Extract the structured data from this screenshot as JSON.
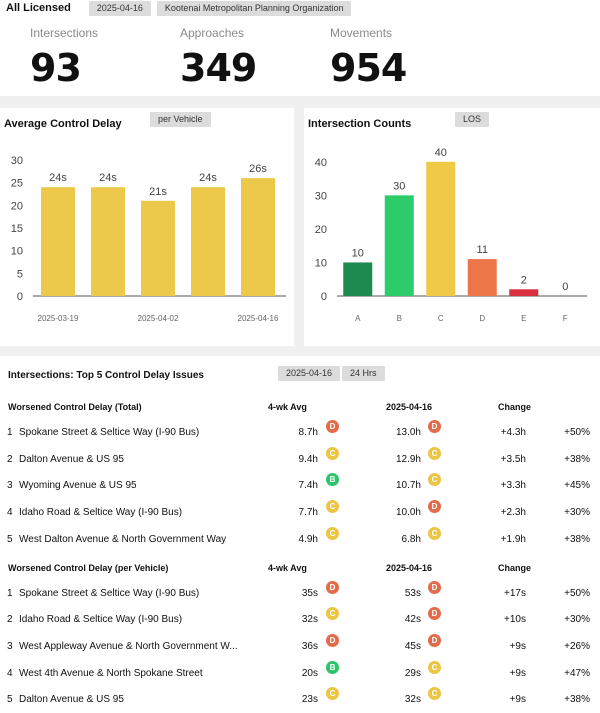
{
  "header": {
    "title": "All Licensed",
    "date_chip": "2025-04-16",
    "org_chip": "Kootenai Metropolitan Planning Organization"
  },
  "stats": [
    {
      "label": "Intersections",
      "value": "93"
    },
    {
      "label": "Approaches",
      "value": "349"
    },
    {
      "label": "Movements",
      "value": "954"
    }
  ],
  "delay_panel": {
    "title": "Average Control Delay",
    "chip": "per Vehicle"
  },
  "counts_panel": {
    "title": "Intersection Counts",
    "chip": "LOS"
  },
  "chart_data": [
    {
      "type": "bar",
      "title": "Average Control Delay",
      "categories": [
        "2025-03-19",
        "",
        "2025-04-02",
        "",
        "2025-04-16"
      ],
      "values": [
        24,
        24,
        21,
        24,
        26
      ],
      "data_labels": [
        "24s",
        "24s",
        "21s",
        "24s",
        "26s"
      ],
      "y_ticks": [
        0,
        5,
        10,
        15,
        20,
        25,
        30
      ],
      "ylim": [
        0,
        30
      ],
      "colors": [
        "#ecc94b"
      ],
      "grid": false
    },
    {
      "type": "bar",
      "title": "Intersection Counts",
      "categories": [
        "A",
        "B",
        "C",
        "D",
        "E",
        "F"
      ],
      "values": [
        10,
        30,
        40,
        11,
        2,
        0
      ],
      "data_labels": [
        "10",
        "30",
        "40",
        "11",
        "2",
        "0"
      ],
      "y_ticks": [
        0,
        10,
        20,
        30,
        40
      ],
      "ylim": [
        0,
        45
      ],
      "colors": [
        "#1e8a4f",
        "#2ccc6a",
        "#f0c946",
        "#ec7549",
        "#d9313f",
        "#c0392b"
      ],
      "grid": false
    }
  ],
  "table": {
    "title": "Intersections: Top 5 Control Delay Issues",
    "chips": [
      "2025-04-16",
      "24 Hrs"
    ],
    "groups": [
      {
        "heading": "Worsened Control Delay (Total)",
        "cols": [
          "4-wk Avg",
          "2025-04-16",
          "Change"
        ],
        "rows": [
          {
            "rank": "1",
            "name": "Spokane Street & Seltice Way (I-90 Bus)",
            "avg": "8.7h",
            "avg_los": "D",
            "cur": "13.0h",
            "cur_los": "D",
            "change": "+4.3h",
            "pct": "+50%"
          },
          {
            "rank": "2",
            "name": "Dalton Avenue & US 95",
            "avg": "9.4h",
            "avg_los": "C",
            "cur": "12.9h",
            "cur_los": "C",
            "change": "+3.5h",
            "pct": "+38%"
          },
          {
            "rank": "3",
            "name": "Wyoming Avenue & US 95",
            "avg": "7.4h",
            "avg_los": "B",
            "cur": "10.7h",
            "cur_los": "C",
            "change": "+3.3h",
            "pct": "+45%"
          },
          {
            "rank": "4",
            "name": "Idaho Road & Seltice Way (I-90 Bus)",
            "avg": "7.7h",
            "avg_los": "C",
            "cur": "10.0h",
            "cur_los": "D",
            "change": "+2.3h",
            "pct": "+30%"
          },
          {
            "rank": "5",
            "name": "West Dalton Avenue & North Government Way",
            "avg": "4.9h",
            "avg_los": "C",
            "cur": "6.8h",
            "cur_los": "C",
            "change": "+1.9h",
            "pct": "+38%"
          }
        ]
      },
      {
        "heading": "Worsened Control Delay (per Vehicle)",
        "cols": [
          "4-wk Avg",
          "2025-04-16",
          "Change"
        ],
        "rows": [
          {
            "rank": "1",
            "name": "Spokane Street & Seltice Way (I-90 Bus)",
            "avg": "35s",
            "avg_los": "D",
            "cur": "53s",
            "cur_los": "D",
            "change": "+17s",
            "pct": "+50%"
          },
          {
            "rank": "2",
            "name": "Idaho Road & Seltice Way (I-90 Bus)",
            "avg": "32s",
            "avg_los": "C",
            "cur": "42s",
            "cur_los": "D",
            "change": "+10s",
            "pct": "+30%"
          },
          {
            "rank": "3",
            "name": "West Appleway Avenue & North Government W...",
            "avg": "36s",
            "avg_los": "D",
            "cur": "45s",
            "cur_los": "D",
            "change": "+9s",
            "pct": "+26%"
          },
          {
            "rank": "4",
            "name": "West 4th Avenue & North Spokane Street",
            "avg": "20s",
            "avg_los": "B",
            "cur": "29s",
            "cur_los": "C",
            "change": "+9s",
            "pct": "+47%"
          },
          {
            "rank": "5",
            "name": "Dalton Avenue & US 95",
            "avg": "23s",
            "avg_los": "C",
            "cur": "32s",
            "cur_los": "C",
            "change": "+9s",
            "pct": "+38%"
          }
        ]
      }
    ]
  }
}
